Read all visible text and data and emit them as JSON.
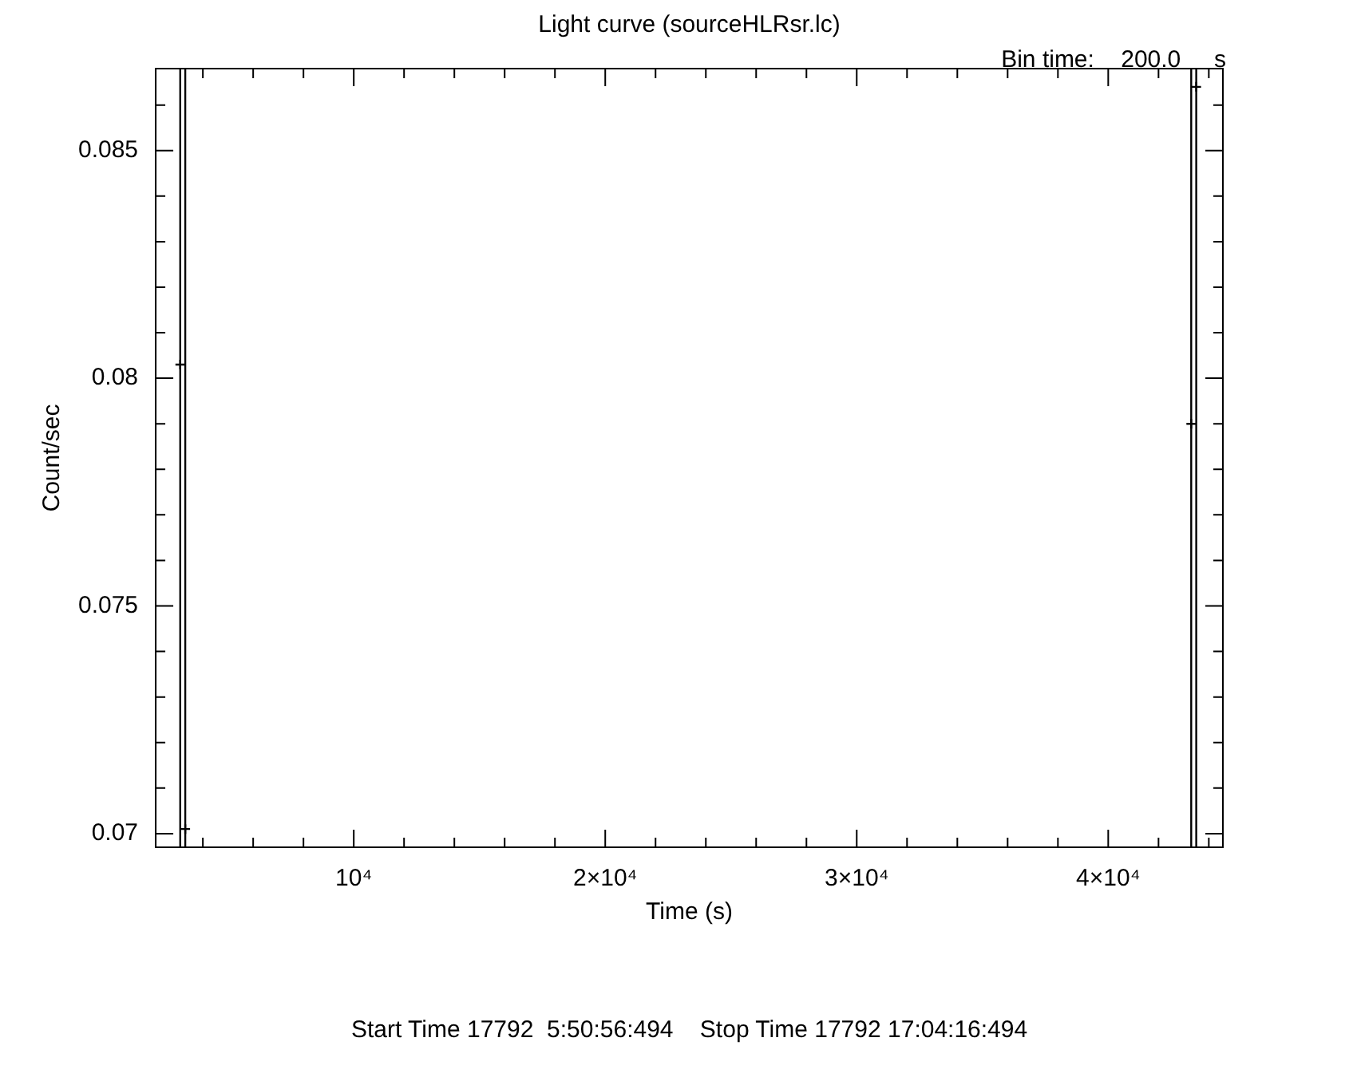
{
  "chart_data": {
    "type": "scatter",
    "title": "Light curve (sourceHLRsr.lc)",
    "xlabel": "Time (s)",
    "ylabel": "Count/sec",
    "annotations": [
      "Bin time:    200.0     s",
      "Start Time 17792  5:50:56:494    Stop Time 17792 17:04:16:494"
    ],
    "x": [
      3100,
      3300,
      43300,
      43500
    ],
    "values": [
      0.0803,
      0.0701,
      0.079,
      0.0864
    ],
    "errors": [
      [
        0.0697,
        0.0868
      ],
      [
        0.0697,
        0.0868
      ],
      [
        0.0697,
        0.0868
      ],
      [
        0.0697,
        0.0868
      ]
    ],
    "color": "#000000",
    "marker": "cross",
    "xlim": [
      2125,
      44560
    ],
    "xticks": [
      {
        "value": 4000,
        "label": null
      },
      {
        "value": 6000,
        "label": null
      },
      {
        "value": 8000,
        "label": null
      },
      {
        "value": 10000,
        "label": "10⁴"
      },
      {
        "value": 12000,
        "label": null
      },
      {
        "value": 14000,
        "label": null
      },
      {
        "value": 16000,
        "label": null
      },
      {
        "value": 18000,
        "label": null
      },
      {
        "value": 20000,
        "label": "2×10⁴"
      },
      {
        "value": 22000,
        "label": null
      },
      {
        "value": 24000,
        "label": null
      },
      {
        "value": 26000,
        "label": null
      },
      {
        "value": 28000,
        "label": null
      },
      {
        "value": 30000,
        "label": "3×10⁴"
      },
      {
        "value": 32000,
        "label": null
      },
      {
        "value": 34000,
        "label": null
      },
      {
        "value": 36000,
        "label": null
      },
      {
        "value": 38000,
        "label": null
      },
      {
        "value": 40000,
        "label": "4×10⁴"
      },
      {
        "value": 42000,
        "label": null
      },
      {
        "value": 44000,
        "label": null
      }
    ],
    "ylim": [
      0.0697,
      0.0868
    ],
    "yticks": [
      0.07,
      {
        "value": 0.071,
        "label": null
      },
      {
        "value": 0.072,
        "label": null
      },
      {
        "value": 0.073,
        "label": null
      },
      {
        "value": 0.074,
        "label": null
      },
      0.075,
      {
        "value": 0.076,
        "label": null
      },
      {
        "value": 0.077,
        "label": null
      },
      {
        "value": 0.078,
        "label": null
      },
      {
        "value": 0.079,
        "label": null
      },
      0.08,
      {
        "value": 0.081,
        "label": null
      },
      {
        "value": 0.082,
        "label": null
      },
      {
        "value": 0.083,
        "label": null
      },
      {
        "value": 0.084,
        "label": null
      },
      0.085,
      {
        "value": 0.086,
        "label": null
      }
    ]
  }
}
